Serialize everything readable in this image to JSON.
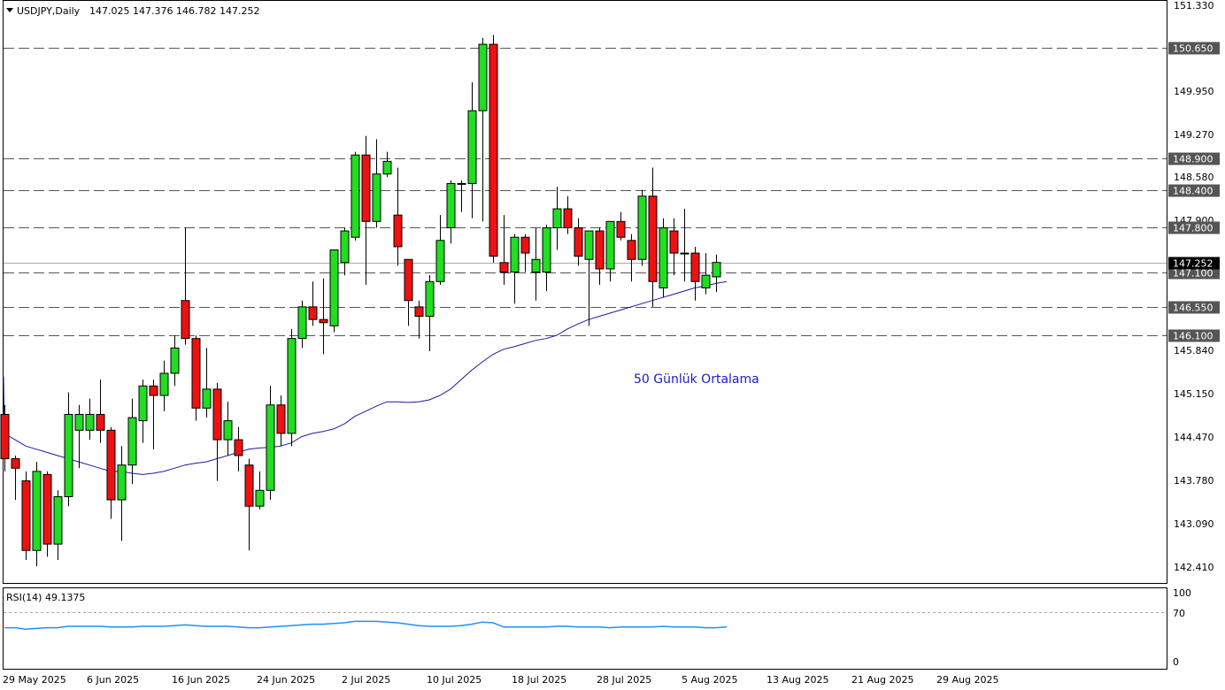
{
  "header": {
    "symbol_label": "USDJPY,Daily",
    "ohlc_label": "147.025 147.376 146.782 147.252"
  },
  "annotation": "50 Günlük Ortalama",
  "price_axis": {
    "ticks": [
      "151.330",
      "149.950",
      "149.270",
      "148.580",
      "147.900",
      "145.840",
      "145.150",
      "144.470",
      "143.780",
      "143.090",
      "142.410"
    ],
    "levels": [
      {
        "label": "150.650",
        "value": 150.65
      },
      {
        "label": "148.900",
        "value": 148.9
      },
      {
        "label": "148.400",
        "value": 148.4
      },
      {
        "label": "147.800",
        "value": 147.8
      },
      {
        "label": "147.100",
        "value": 147.1
      },
      {
        "label": "146.550",
        "value": 146.55
      },
      {
        "label": "146.100",
        "value": 146.1
      }
    ],
    "current_label": "147.252",
    "current_value": 147.252
  },
  "rsi": {
    "label": "RSI(14) 49.1375",
    "ticks": [
      "100",
      "70",
      "0"
    ],
    "level": 70
  },
  "date_axis": {
    "labels": [
      "29 May 2025",
      "6 Jun 2025",
      "16 Jun 2025",
      "24 Jun 2025",
      "2 Jul 2025",
      "10 Jul 2025",
      "18 Jul 2025",
      "28 Jul 2025",
      "5 Aug 2025",
      "13 Aug 2025",
      "21 Aug 2025",
      "29 Aug 2025"
    ]
  },
  "colors": {
    "bull": "#22dd22",
    "bear": "#ee1111",
    "ma": "#1a1aa0",
    "rsi": "#1e90ff",
    "levels": "#555555",
    "current_bg": "#000000"
  },
  "chart_data": {
    "type": "candlestick",
    "symbol": "USDJPY",
    "timeframe": "Daily",
    "ylim": [
      142.1,
      151.4
    ],
    "candles": [
      {
        "o": 144.85,
        "h": 145.0,
        "l": 143.95,
        "c": 144.15
      },
      {
        "o": 144.15,
        "h": 144.2,
        "l": 143.5,
        "c": 144.0
      },
      {
        "o": 143.8,
        "h": 143.95,
        "l": 142.55,
        "c": 142.7
      },
      {
        "o": 142.7,
        "h": 144.1,
        "l": 142.45,
        "c": 143.95
      },
      {
        "o": 143.9,
        "h": 143.95,
        "l": 142.6,
        "c": 142.8
      },
      {
        "o": 142.8,
        "h": 143.65,
        "l": 142.55,
        "c": 143.55
      },
      {
        "o": 143.55,
        "h": 145.2,
        "l": 143.4,
        "c": 144.85
      },
      {
        "o": 144.6,
        "h": 145.0,
        "l": 144.0,
        "c": 144.85
      },
      {
        "o": 144.6,
        "h": 145.1,
        "l": 144.45,
        "c": 144.85
      },
      {
        "o": 144.85,
        "h": 145.4,
        "l": 144.4,
        "c": 144.6
      },
      {
        "o": 144.6,
        "h": 144.65,
        "l": 143.2,
        "c": 143.5
      },
      {
        "o": 143.5,
        "h": 144.35,
        "l": 142.85,
        "c": 144.05
      },
      {
        "o": 144.05,
        "h": 145.1,
        "l": 143.75,
        "c": 144.8
      },
      {
        "o": 144.75,
        "h": 145.4,
        "l": 144.4,
        "c": 145.3
      },
      {
        "o": 145.3,
        "h": 145.4,
        "l": 144.3,
        "c": 145.15
      },
      {
        "o": 145.15,
        "h": 145.7,
        "l": 144.9,
        "c": 145.5
      },
      {
        "o": 145.5,
        "h": 146.1,
        "l": 145.3,
        "c": 145.9
      },
      {
        "o": 146.65,
        "h": 147.8,
        "l": 145.95,
        "c": 146.05
      },
      {
        "o": 146.05,
        "h": 146.1,
        "l": 144.75,
        "c": 144.95
      },
      {
        "o": 144.95,
        "h": 145.9,
        "l": 144.8,
        "c": 145.25
      },
      {
        "o": 145.25,
        "h": 145.35,
        "l": 143.8,
        "c": 144.45
      },
      {
        "o": 144.45,
        "h": 145.05,
        "l": 144.2,
        "c": 144.75
      },
      {
        "o": 144.45,
        "h": 144.65,
        "l": 143.95,
        "c": 144.2
      },
      {
        "o": 144.05,
        "h": 144.15,
        "l": 142.7,
        "c": 143.4
      },
      {
        "o": 143.4,
        "h": 143.95,
        "l": 143.35,
        "c": 143.65
      },
      {
        "o": 143.65,
        "h": 145.3,
        "l": 143.5,
        "c": 145.0
      },
      {
        "o": 145.0,
        "h": 145.15,
        "l": 144.35,
        "c": 144.55
      },
      {
        "o": 144.55,
        "h": 146.2,
        "l": 144.35,
        "c": 146.05
      },
      {
        "o": 146.05,
        "h": 146.65,
        "l": 145.9,
        "c": 146.55
      },
      {
        "o": 146.55,
        "h": 146.95,
        "l": 146.25,
        "c": 146.35
      },
      {
        "o": 146.35,
        "h": 147.0,
        "l": 145.8,
        "c": 146.3
      },
      {
        "o": 146.25,
        "h": 147.4,
        "l": 146.15,
        "c": 147.45
      },
      {
        "o": 147.25,
        "h": 147.8,
        "l": 147.05,
        "c": 147.75
      },
      {
        "o": 147.65,
        "h": 149.0,
        "l": 147.6,
        "c": 148.95
      },
      {
        "o": 148.95,
        "h": 149.25,
        "l": 146.9,
        "c": 147.9
      },
      {
        "o": 147.9,
        "h": 149.2,
        "l": 147.8,
        "c": 148.65
      },
      {
        "o": 148.65,
        "h": 149.0,
        "l": 148.6,
        "c": 148.85
      },
      {
        "o": 148.0,
        "h": 148.75,
        "l": 147.2,
        "c": 147.5
      },
      {
        "o": 147.3,
        "h": 147.3,
        "l": 146.25,
        "c": 146.65
      },
      {
        "o": 146.55,
        "h": 146.65,
        "l": 146.05,
        "c": 146.4
      },
      {
        "o": 146.4,
        "h": 147.05,
        "l": 145.85,
        "c": 146.95
      },
      {
        "o": 146.95,
        "h": 148.0,
        "l": 146.9,
        "c": 147.6
      },
      {
        "o": 147.8,
        "h": 148.55,
        "l": 147.55,
        "c": 148.5
      },
      {
        "o": 148.5,
        "h": 148.55,
        "l": 148.05,
        "c": 148.5
      },
      {
        "o": 148.5,
        "h": 150.1,
        "l": 147.95,
        "c": 149.65
      },
      {
        "o": 149.65,
        "h": 150.8,
        "l": 147.9,
        "c": 150.7
      },
      {
        "o": 150.7,
        "h": 150.85,
        "l": 147.25,
        "c": 147.35
      },
      {
        "o": 147.25,
        "h": 148.0,
        "l": 146.9,
        "c": 147.1
      },
      {
        "o": 147.1,
        "h": 147.7,
        "l": 146.6,
        "c": 147.65
      },
      {
        "o": 147.65,
        "h": 147.7,
        "l": 147.1,
        "c": 147.4
      },
      {
        "o": 147.1,
        "h": 147.8,
        "l": 146.65,
        "c": 147.3
      },
      {
        "o": 147.1,
        "h": 147.85,
        "l": 146.8,
        "c": 147.8
      },
      {
        "o": 147.8,
        "h": 148.45,
        "l": 147.45,
        "c": 148.1
      },
      {
        "o": 148.1,
        "h": 148.3,
        "l": 147.7,
        "c": 147.8
      },
      {
        "o": 147.8,
        "h": 147.95,
        "l": 147.2,
        "c": 147.35
      },
      {
        "o": 147.3,
        "h": 147.75,
        "l": 146.25,
        "c": 147.75
      },
      {
        "o": 147.75,
        "h": 147.8,
        "l": 146.9,
        "c": 147.15
      },
      {
        "o": 147.15,
        "h": 147.9,
        "l": 146.95,
        "c": 147.9
      },
      {
        "o": 147.9,
        "h": 148.05,
        "l": 147.6,
        "c": 147.65
      },
      {
        "o": 147.6,
        "h": 147.7,
        "l": 146.95,
        "c": 147.3
      },
      {
        "o": 147.3,
        "h": 148.4,
        "l": 147.2,
        "c": 148.3
      },
      {
        "o": 148.3,
        "h": 148.75,
        "l": 146.55,
        "c": 146.95
      },
      {
        "o": 146.85,
        "h": 147.95,
        "l": 146.7,
        "c": 147.8
      },
      {
        "o": 147.75,
        "h": 147.95,
        "l": 147.05,
        "c": 147.4
      },
      {
        "o": 147.4,
        "h": 148.1,
        "l": 146.95,
        "c": 147.4
      },
      {
        "o": 147.4,
        "h": 147.5,
        "l": 146.65,
        "c": 146.95
      },
      {
        "o": 146.85,
        "h": 147.4,
        "l": 146.75,
        "c": 147.05
      },
      {
        "o": 147.025,
        "h": 147.376,
        "l": 146.782,
        "c": 147.252
      }
    ],
    "ma50": [
      144.55,
      144.45,
      144.35,
      144.3,
      144.25,
      144.2,
      144.15,
      144.1,
      144.05,
      144.0,
      143.95,
      143.95,
      143.92,
      143.9,
      143.92,
      143.95,
      144.0,
      144.05,
      144.08,
      144.1,
      144.15,
      144.2,
      144.25,
      144.3,
      144.32,
      144.33,
      144.35,
      144.4,
      144.5,
      144.55,
      144.58,
      144.62,
      144.7,
      144.82,
      144.9,
      144.98,
      145.05,
      145.05,
      145.04,
      145.05,
      145.08,
      145.15,
      145.25,
      145.4,
      145.55,
      145.68,
      145.8,
      145.88,
      145.92,
      145.97,
      146.02,
      146.05,
      146.1,
      146.2,
      146.28,
      146.35,
      146.4,
      146.45,
      146.5,
      146.55,
      146.6,
      146.65,
      146.7,
      146.75,
      146.8,
      146.85,
      146.88,
      146.92,
      146.95
    ],
    "rsi": [
      48,
      48,
      46,
      47,
      48,
      48,
      50,
      50,
      50,
      50,
      49,
      49,
      49,
      50,
      50,
      50,
      51,
      52,
      51,
      50,
      50,
      50,
      49,
      48,
      48,
      49,
      50,
      51,
      52,
      53,
      53,
      54,
      55,
      57,
      57,
      57,
      56,
      55,
      53,
      51,
      50,
      50,
      50,
      51,
      53,
      56,
      55,
      49,
      49,
      49,
      49,
      49,
      50,
      50,
      49,
      49,
      49,
      48,
      49,
      49,
      49,
      49,
      50,
      49,
      49,
      49,
      48,
      48,
      49
    ],
    "rsi_level": 70
  }
}
